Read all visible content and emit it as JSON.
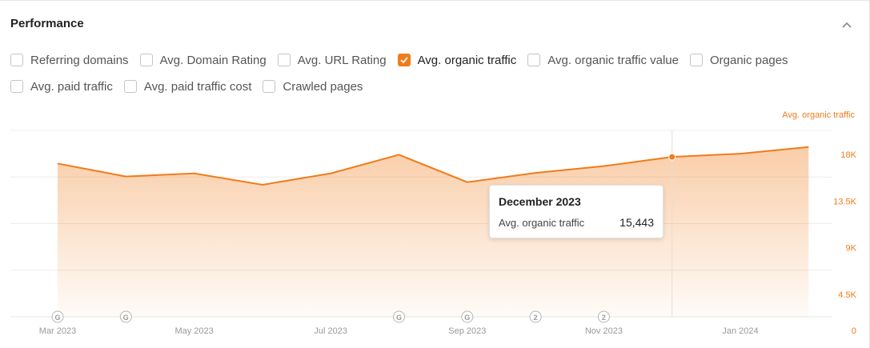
{
  "panel": {
    "title": "Performance"
  },
  "options": {
    "row1": [
      {
        "label": "Referring domains",
        "checked": false
      },
      {
        "label": "Avg. Domain Rating",
        "checked": false
      },
      {
        "label": "Avg. URL Rating",
        "checked": false
      },
      {
        "label": "Avg. organic traffic",
        "checked": true
      },
      {
        "label": "Avg. organic traffic value",
        "checked": false
      },
      {
        "label": "Organic pages",
        "checked": false
      }
    ],
    "row2": [
      {
        "label": "Avg. paid traffic",
        "checked": false
      },
      {
        "label": "Avg. paid traffic cost",
        "checked": false
      },
      {
        "label": "Crawled pages",
        "checked": false
      }
    ]
  },
  "tooltip": {
    "title": "December 2023",
    "series": "Avg. organic traffic",
    "value": "15,443"
  },
  "colors": {
    "accent": "#f07c1a"
  },
  "chart_data": {
    "type": "area",
    "y_axis_label": "Avg. organic traffic",
    "x": [
      "Mar 2023",
      "Apr 2023",
      "May 2023",
      "Jun 2023",
      "Jul 2023",
      "Aug 2023",
      "Sep 2023",
      "Oct 2023",
      "Nov 2023",
      "Dec 2023",
      "Jan 2024",
      "Feb 2024"
    ],
    "series": [
      {
        "name": "Avg. organic traffic",
        "values": [
          14800,
          13550,
          13850,
          12750,
          13850,
          15650,
          13000,
          13900,
          14550,
          15443,
          15750,
          16400
        ]
      }
    ],
    "x_tick_labels": [
      "Mar 2023",
      "May 2023",
      "Jul 2023",
      "Sep 2023",
      "Nov 2023",
      "Jan 2024"
    ],
    "y_ticks": [
      "0",
      "4.5K",
      "9K",
      "13.5K",
      "18K"
    ],
    "ylim": [
      0,
      18000
    ],
    "highlight_x": "Dec 2023",
    "annotations": [
      {
        "x": "Mar 2023",
        "label": "G"
      },
      {
        "x": "Apr 2023",
        "label": "G"
      },
      {
        "x": "Aug 2023",
        "label": "G"
      },
      {
        "x": "Sep 2023",
        "label": "G"
      },
      {
        "x": "Oct 2023",
        "label": "2"
      },
      {
        "x": "Nov 2023",
        "label": "2"
      }
    ],
    "grid": true
  }
}
